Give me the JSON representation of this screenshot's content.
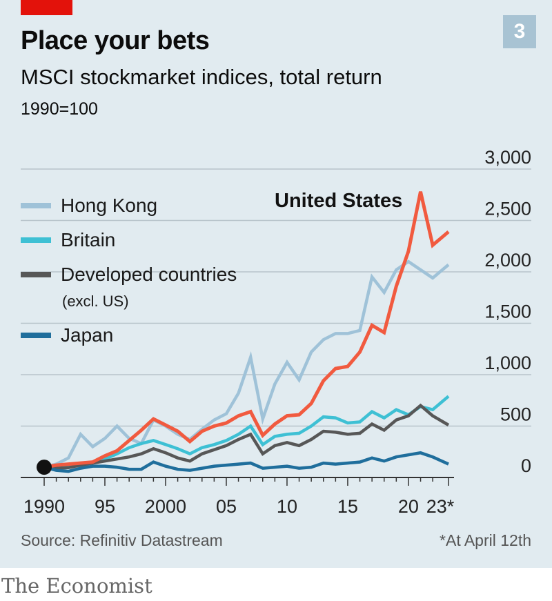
{
  "header": {
    "badge_number": "3",
    "title": "Place your bets",
    "subtitle": "MSCI stockmarket indices, total return",
    "unit": "1990=100"
  },
  "legend": {
    "hong_kong": "Hong Kong",
    "britain": "Britain",
    "developed": "Developed countries",
    "developed_note": "(excl. US)",
    "japan": "Japan"
  },
  "series_label_us": "United States",
  "footer": {
    "source": "Source: Refinitiv Datastream",
    "footnote": "*At April 12th",
    "brand": "The Economist"
  },
  "colors": {
    "accent_red": "#e3120b",
    "panel_bg": "#e1ebf0",
    "badge": "#a8c3d3",
    "united_states": "#f15a3f",
    "hong_kong": "#9fc2d8",
    "britain": "#3ec0d4",
    "developed": "#575757",
    "japan": "#1f6e9c",
    "grid": "#b7c3ca",
    "axis": "#333333"
  },
  "chart_data": {
    "type": "line",
    "title": "Place your bets",
    "subtitle": "MSCI stockmarket indices, total return",
    "unit_label": "1990=100",
    "xlim": [
      1990,
      2023.3
    ],
    "ylim": [
      0,
      3000
    ],
    "x_ticks": [
      1990,
      1995,
      2000,
      2005,
      2010,
      2015,
      2020,
      2023
    ],
    "x_tick_labels": [
      "1990",
      "95",
      "2000",
      "05",
      "10",
      "15",
      "20",
      "23*"
    ],
    "y_ticks": [
      0,
      500,
      1000,
      1500,
      2000,
      2500,
      3000
    ],
    "y_tick_labels": [
      "0",
      "500",
      "1,000",
      "1,500",
      "2,000",
      "2,500",
      "3,000"
    ],
    "grid": true,
    "x": [
      1990,
      1991,
      1992,
      1993,
      1994,
      1995,
      1996,
      1997,
      1998,
      1999,
      2000,
      2001,
      2002,
      2003,
      2004,
      2005,
      2006,
      2007,
      2008,
      2009,
      2010,
      2011,
      2012,
      2013,
      2014,
      2015,
      2016,
      2017,
      2018,
      2019,
      2020,
      2021,
      2022,
      2023.3
    ],
    "series": [
      {
        "key": "hong_kong",
        "name": "Hong Kong",
        "values": [
          100,
          130,
          190,
          420,
          300,
          380,
          500,
          380,
          330,
          560,
          500,
          420,
          370,
          470,
          560,
          620,
          820,
          1170,
          570,
          910,
          1120,
          950,
          1220,
          1340,
          1400,
          1400,
          1430,
          1950,
          1800,
          2020,
          2100,
          2020,
          1940,
          2070
        ]
      },
      {
        "key": "britain",
        "name": "Britain",
        "values": [
          100,
          110,
          120,
          140,
          150,
          180,
          230,
          290,
          330,
          360,
          320,
          280,
          230,
          290,
          320,
          360,
          420,
          500,
          320,
          400,
          420,
          430,
          500,
          590,
          580,
          530,
          540,
          640,
          580,
          660,
          610,
          690,
          660,
          790
        ]
      },
      {
        "key": "developed",
        "name": "Developed countries (excl. US)",
        "values": [
          100,
          90,
          95,
          120,
          140,
          160,
          180,
          200,
          230,
          280,
          240,
          190,
          160,
          230,
          270,
          310,
          370,
          420,
          230,
          310,
          340,
          310,
          370,
          450,
          440,
          420,
          430,
          520,
          460,
          560,
          600,
          700,
          600,
          510
        ]
      },
      {
        "key": "japan",
        "name": "Japan",
        "values": [
          100,
          70,
          60,
          90,
          110,
          110,
          100,
          80,
          80,
          150,
          110,
          80,
          70,
          90,
          110,
          120,
          130,
          140,
          90,
          100,
          110,
          90,
          100,
          140,
          130,
          140,
          150,
          190,
          160,
          200,
          220,
          240,
          200,
          130
        ]
      },
      {
        "key": "united_states",
        "name": "United States",
        "values": [
          100,
          120,
          130,
          140,
          150,
          210,
          260,
          360,
          460,
          570,
          510,
          450,
          350,
          450,
          500,
          530,
          600,
          640,
          410,
          520,
          600,
          610,
          720,
          940,
          1060,
          1080,
          1220,
          1480,
          1410,
          1860,
          2200,
          2780,
          2260,
          2390
        ]
      }
    ],
    "annotations": [
      "United States"
    ],
    "legend_position": "left"
  }
}
